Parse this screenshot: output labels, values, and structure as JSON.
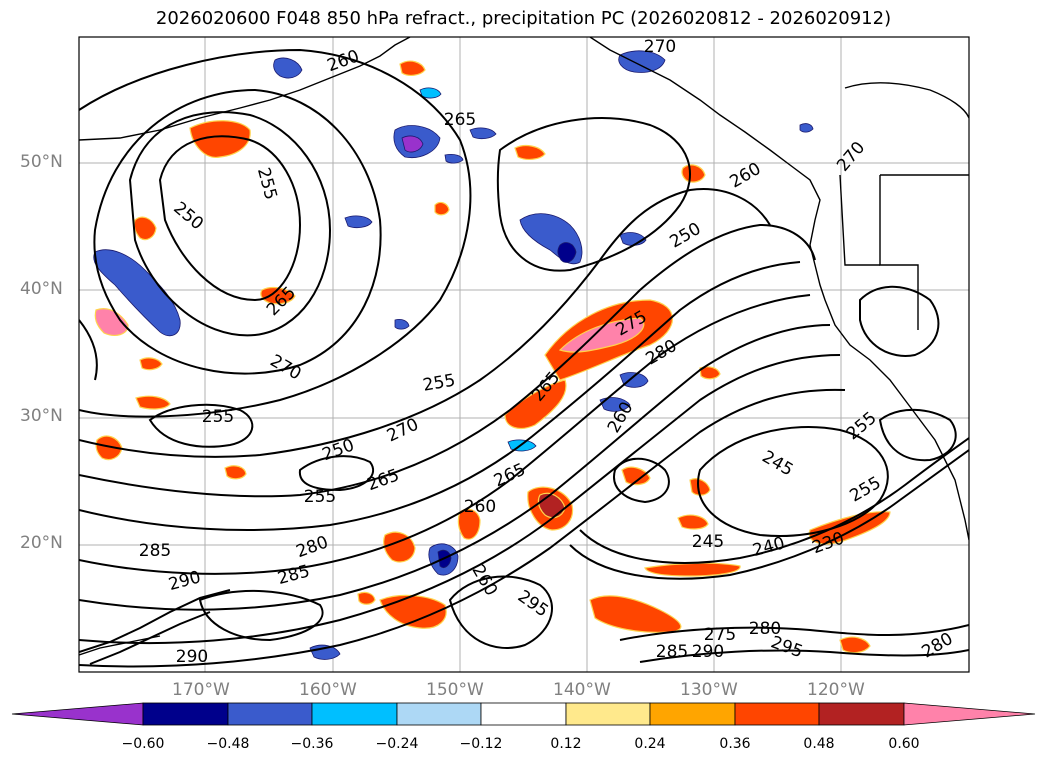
{
  "title": "2026020600 F048 850 hPa refract., precipitation PC (2026020812 - 2026020912)",
  "map": {
    "lat_labels": [
      "50°N",
      "40°N",
      "30°N",
      "20°N"
    ],
    "lon_labels": [
      "170°W",
      "160°W",
      "150°W",
      "140°W",
      "130°W",
      "120°W"
    ],
    "contour_labels": [
      "260",
      "265",
      "270",
      "255",
      "250",
      "255",
      "265",
      "270",
      "275",
      "280",
      "285",
      "290",
      "255",
      "250",
      "265",
      "270",
      "265",
      "260",
      "255",
      "260",
      "245",
      "240",
      "230",
      "245",
      "250",
      "255",
      "260",
      "265",
      "280",
      "285",
      "290",
      "295",
      "275",
      "280",
      "285",
      "290",
      "295",
      "280",
      "260",
      "255",
      "270"
    ]
  },
  "colorbar": {
    "ticks": [
      "−0.60",
      "−0.48",
      "−0.36",
      "−0.24",
      "−0.12",
      "0.12",
      "0.24",
      "0.36",
      "0.48",
      "0.60"
    ],
    "colors": [
      "#9932cc",
      "#00008b",
      "#3a5bcc",
      "#00bfff",
      "#add8f5",
      "#ffffff",
      "#ffe98c",
      "#ffa500",
      "#ff4500",
      "#b22222",
      "#ff82aa"
    ]
  }
}
